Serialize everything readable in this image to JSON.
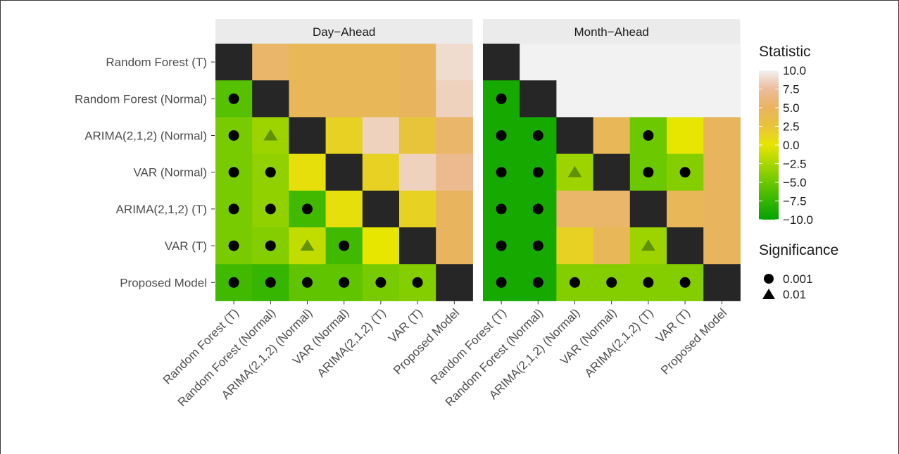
{
  "chart_data": {
    "type": "heatmap",
    "facets": [
      "Day−Ahead",
      "Month−Ahead"
    ],
    "models": [
      "Random Forest (T)",
      "Random Forest (Normal)",
      "ARIMA(2,1,2) (Normal)",
      "VAR (Normal)",
      "ARIMA(2,1,2) (T)",
      "VAR (T)",
      "Proposed Model"
    ],
    "row_order_top_to_bottom": [
      "Random Forest (T)",
      "Random Forest (Normal)",
      "ARIMA(2,1,2) (Normal)",
      "VAR (Normal)",
      "ARIMA(2,1,2) (T)",
      "VAR (T)",
      "Proposed Model"
    ],
    "note_values": "Rows follow row_order_top_to_bottom, columns follow models. null = diagonal (no comparison, black cell). 'na' = empty (light grey) cell.",
    "values": {
      "Day−Ahead": [
        [
          null,
          5.5,
          4.5,
          4.5,
          4.5,
          5.0,
          9.0
        ],
        [
          -6.0,
          null,
          4.5,
          4.5,
          4.5,
          5.0,
          8.5
        ],
        [
          -4.5,
          -3.0,
          null,
          1.5,
          8.5,
          2.5,
          5.5
        ],
        [
          -4.5,
          -3.5,
          0.5,
          null,
          1.5,
          8.5,
          7.0
        ],
        [
          -4.5,
          -3.5,
          -7.0,
          0.5,
          null,
          1.5,
          5.0
        ],
        [
          -4.5,
          -4.0,
          -1.5,
          -7.0,
          0.0,
          null,
          5.0
        ],
        [
          -7.0,
          -7.5,
          -5.5,
          -5.5,
          -4.5,
          -4.0,
          null
        ]
      ],
      "Month−Ahead": [
        [
          null,
          "na",
          "na",
          "na",
          "na",
          "na",
          "na"
        ],
        [
          -9.0,
          null,
          "na",
          "na",
          "na",
          "na",
          "na"
        ],
        [
          -9.0,
          -9.0,
          null,
          4.5,
          -5.0,
          0.0,
          5.0
        ],
        [
          -9.0,
          -9.0,
          -3.0,
          null,
          -5.0,
          -4.0,
          5.0
        ],
        [
          -9.0,
          -9.0,
          5.5,
          5.5,
          null,
          4.5,
          5.0
        ],
        [
          -9.0,
          -9.0,
          1.5,
          4.5,
          -3.0,
          null,
          5.0
        ],
        [
          -9.0,
          -9.0,
          -4.0,
          -4.0,
          -4.0,
          -4.0,
          null
        ]
      ]
    },
    "significance": {
      "Day−Ahead": [
        [
          null,
          null,
          null,
          null,
          null,
          null,
          null
        ],
        [
          "0.001",
          null,
          null,
          null,
          null,
          null,
          null
        ],
        [
          "0.001",
          "0.01",
          null,
          null,
          null,
          null,
          null
        ],
        [
          "0.001",
          "0.001",
          null,
          null,
          null,
          null,
          null
        ],
        [
          "0.001",
          "0.001",
          "0.001",
          null,
          null,
          null,
          null
        ],
        [
          "0.001",
          "0.001",
          "0.01",
          "0.001",
          null,
          null,
          null
        ],
        [
          "0.001",
          "0.001",
          "0.001",
          "0.001",
          "0.001",
          "0.001",
          null
        ]
      ],
      "Month−Ahead": [
        [
          null,
          null,
          null,
          null,
          null,
          null,
          null
        ],
        [
          "0.001",
          null,
          null,
          null,
          null,
          null,
          null
        ],
        [
          "0.001",
          "0.001",
          null,
          null,
          "0.001",
          null,
          null
        ],
        [
          "0.001",
          "0.001",
          "0.01",
          null,
          "0.001",
          "0.001",
          null
        ],
        [
          "0.001",
          "0.001",
          null,
          null,
          null,
          null,
          null
        ],
        [
          "0.001",
          "0.001",
          null,
          null,
          "0.01",
          null,
          null
        ],
        [
          "0.001",
          "0.001",
          "0.001",
          "0.001",
          "0.001",
          "0.001",
          null
        ]
      ]
    },
    "legend": {
      "placement": "right",
      "statistic_title": "Statistic",
      "statistic_ticks": [
        "10.0",
        "7.5",
        "5.0",
        "2.5",
        "0.0",
        "−2.5",
        "−5.0",
        "−7.5",
        "−10.0"
      ],
      "statistic_tick_values": [
        10,
        7.5,
        5,
        2.5,
        0,
        -2.5,
        -5,
        -7.5,
        -10
      ],
      "range": [
        -10,
        10
      ],
      "significance_title": "Significance",
      "significance_items": [
        {
          "shape": "circle",
          "label": "0.001"
        },
        {
          "shape": "triangle",
          "label": "0.01"
        }
      ]
    },
    "colors": {
      "scale_low": "#00a300",
      "scale_mid": "#e6e600",
      "scale_high": "#f2f2f2",
      "diagonal": "#262626",
      "na": "#f2f2f2",
      "strip": "#ebebeb",
      "panel_bg": "#ebebeb"
    }
  }
}
